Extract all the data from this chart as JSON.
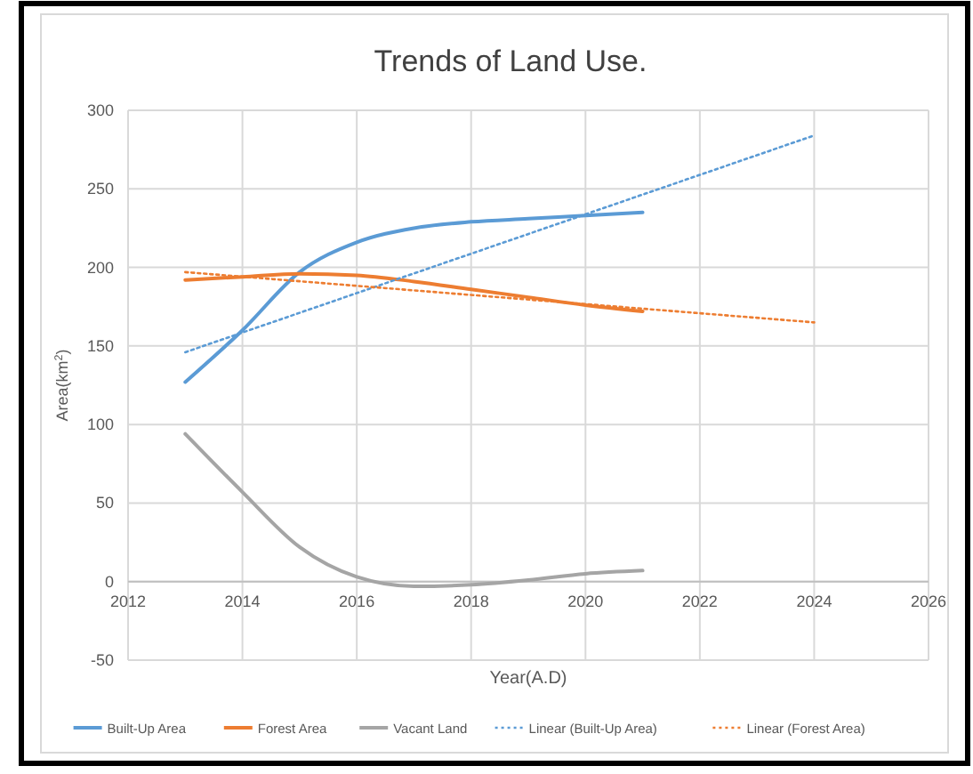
{
  "chart_data": {
    "type": "line",
    "title": "Trends of Land Use.",
    "xlabel": "Year(A.D)",
    "ylabel": "Area(km$^{2}$)",
    "xlim": [
      2012,
      2026
    ],
    "xticks": [
      2012,
      2014,
      2016,
      2018,
      2020,
      2022,
      2024,
      2026
    ],
    "ylim": [
      -50,
      300
    ],
    "yticks": [
      -50,
      0,
      50,
      100,
      150,
      200,
      250,
      300
    ],
    "grid": true,
    "legend": "bottom",
    "series": [
      {
        "name": "Built-Up Area",
        "color": "#5b9bd5",
        "x": [
          2013,
          2014,
          2015,
          2016,
          2017,
          2018,
          2019,
          2020,
          2021
        ],
        "values": [
          127,
          160,
          197,
          216,
          225,
          229,
          231,
          233,
          235
        ]
      },
      {
        "name": "Forest Area",
        "color": "#ed7d31",
        "x": [
          2013,
          2014,
          2015,
          2016,
          2017,
          2018,
          2019,
          2020,
          2021
        ],
        "values": [
          192,
          194,
          196,
          195,
          191,
          186,
          181,
          176,
          172
        ]
      },
      {
        "name": "Vacant Land",
        "color": "#a5a5a5",
        "x": [
          2013,
          2014,
          2015,
          2016,
          2017,
          2018,
          2019,
          2020,
          2021
        ],
        "values": [
          94,
          57,
          22,
          3,
          -3,
          -2,
          1,
          5,
          7
        ]
      },
      {
        "name": "Linear (Built-Up Area)",
        "color": "#5b9bd5",
        "line_style": "dotted",
        "x": [
          2013,
          2024
        ],
        "values": [
          146,
          284
        ]
      },
      {
        "name": "Linear (Forest Area)",
        "color": "#ed7d31",
        "line_style": "dotted",
        "x": [
          2013,
          2024
        ],
        "values": [
          197,
          165
        ]
      }
    ]
  }
}
